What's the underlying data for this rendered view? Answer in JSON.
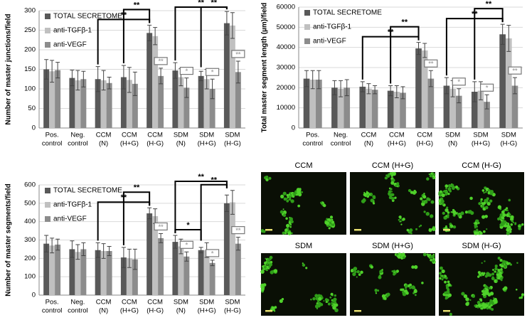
{
  "chart_data": [
    {
      "type": "bar",
      "y_label": "Number of master junctions/field",
      "categories": [
        [
          "Pos.",
          "control"
        ],
        [
          "Neg.",
          "control"
        ],
        [
          "CCM",
          "(N)"
        ],
        [
          "CCM",
          "(H+G)"
        ],
        [
          "CCM",
          "(H-G)"
        ],
        [
          "SDM",
          "(N)"
        ],
        [
          "SDM",
          "(H+G)"
        ],
        [
          "SDM",
          "(H-G)"
        ]
      ],
      "series": [
        {
          "name": "TOTAL SECRETOME",
          "color": "#595959",
          "values": [
            150,
            128,
            125,
            130,
            243,
            147,
            133,
            268
          ],
          "errors": [
            25,
            20,
            32,
            30,
            20,
            20,
            12,
            30
          ]
        },
        {
          "name": "anti-TGFβ-1",
          "color": "#c0c0c0",
          "values": [
            145,
            122,
            122,
            123,
            235,
            130,
            125,
            262
          ],
          "errors": [
            28,
            25,
            25,
            32,
            22,
            22,
            25,
            33
          ]
        },
        {
          "name": "anti-VEGF",
          "color": "#8c8c8c",
          "values": [
            148,
            125,
            115,
            113,
            133,
            103,
            100,
            143
          ],
          "errors": [
            20,
            20,
            15,
            30,
            20,
            25,
            25,
            28
          ]
        }
      ],
      "ylim": [
        0,
        300
      ],
      "yticks": [
        0,
        50,
        100,
        150,
        200,
        250,
        300
      ],
      "grid": true,
      "brackets": [
        {
          "label": "**",
          "from": 2,
          "to": 4
        },
        {
          "label": "**",
          "from": 3,
          "to": 4
        },
        {
          "label": "**",
          "from": 5,
          "to": 7
        },
        {
          "label": "**",
          "from": 6,
          "to": 7
        }
      ],
      "box_labels": [
        {
          "category": 4,
          "text": "**"
        },
        {
          "category": 5,
          "text": "*"
        },
        {
          "category": 6,
          "text": "*"
        },
        {
          "category": 7,
          "text": "**"
        }
      ]
    },
    {
      "type": "bar",
      "y_label": "Total master segment length (µm)/field",
      "categories": [
        [
          "Pos.",
          "control"
        ],
        [
          "Neg.",
          "control"
        ],
        [
          "CCM",
          "(N)"
        ],
        [
          "CCM",
          "(H+G)"
        ],
        [
          "CCM",
          "(H-G)"
        ],
        [
          "SDM",
          "(N)"
        ],
        [
          "SDM",
          "(H+G)"
        ],
        [
          "SDM",
          "(H-G)"
        ]
      ],
      "series": [
        {
          "name": "TOTAL SECRETOME",
          "color": "#595959",
          "values": [
            24500,
            20000,
            20500,
            18500,
            39500,
            21000,
            18000,
            46500
          ],
          "errors": [
            4000,
            3500,
            2500,
            2500,
            3000,
            4000,
            5000,
            5000
          ]
        },
        {
          "name": "anti-TGFβ-1",
          "color": "#c0c0c0",
          "values": [
            24000,
            19500,
            19500,
            18000,
            38500,
            19500,
            18500,
            44500
          ],
          "errors": [
            4500,
            4000,
            2500,
            3000,
            3500,
            4000,
            4500,
            6500
          ]
        },
        {
          "name": "anti-VEGF",
          "color": "#8c8c8c",
          "values": [
            24000,
            20000,
            19000,
            17500,
            24500,
            16000,
            13000,
            21000
          ],
          "errors": [
            4500,
            4000,
            2000,
            3000,
            4000,
            3500,
            3500,
            4000
          ]
        }
      ],
      "ylim": [
        0,
        60000
      ],
      "yticks": [
        0,
        10000,
        20000,
        30000,
        40000,
        50000,
        60000
      ],
      "grid": true,
      "brackets": [
        {
          "label": "**",
          "from": 2,
          "to": 4
        },
        {
          "label": "**",
          "from": 3,
          "to": 4
        },
        {
          "label": "**",
          "from": 5,
          "to": 7
        },
        {
          "label": "**",
          "from": 6,
          "to": 7
        }
      ],
      "box_labels": [
        {
          "category": 4,
          "text": "**"
        },
        {
          "category": 5,
          "text": "*"
        },
        {
          "category": 6,
          "text": "*"
        },
        {
          "category": 7,
          "text": "**"
        }
      ]
    },
    {
      "type": "bar",
      "y_label": "Number of master segments/field",
      "categories": [
        [
          "Pos.",
          "control"
        ],
        [
          "Neg.",
          "control"
        ],
        [
          "CCM",
          "(N)"
        ],
        [
          "CCM",
          "(H+G)"
        ],
        [
          "CCM",
          "(H-G)"
        ],
        [
          "SDM",
          "(N)"
        ],
        [
          "SDM",
          "(H+G)"
        ],
        [
          "SDM",
          "(H-G)"
        ]
      ],
      "series": [
        {
          "name": "TOTAL SECRETOME",
          "color": "#595959",
          "values": [
            280,
            250,
            245,
            205,
            445,
            290,
            245,
            500
          ],
          "errors": [
            45,
            45,
            40,
            55,
            30,
            35,
            15,
            45
          ]
        },
        {
          "name": "anti-TGFβ-1",
          "color": "#c0c0c0",
          "values": [
            270,
            235,
            240,
            200,
            430,
            265,
            245,
            505
          ],
          "errors": [
            40,
            40,
            40,
            50,
            40,
            40,
            40,
            65
          ]
        },
        {
          "name": "anti-VEGF",
          "color": "#8c8c8c",
          "values": [
            275,
            250,
            240,
            195,
            310,
            210,
            175,
            280
          ],
          "errors": [
            30,
            35,
            25,
            55,
            25,
            25,
            15,
            35
          ]
        }
      ],
      "ylim": [
        0,
        600
      ],
      "yticks": [
        0,
        100,
        200,
        300,
        400,
        500,
        600
      ],
      "grid": true,
      "brackets": [
        {
          "label": "**",
          "from": 2,
          "to": 4
        },
        {
          "label": "**",
          "from": 3,
          "to": 4
        },
        {
          "label": "*",
          "from": 5,
          "to": 6
        },
        {
          "label": "**",
          "from": 6,
          "to": 7
        },
        {
          "label": "**",
          "from": 5,
          "to": 7
        }
      ],
      "box_labels": [
        {
          "category": 4,
          "text": "**"
        },
        {
          "category": 5,
          "text": "*"
        },
        {
          "category": 6,
          "text": "*"
        },
        {
          "category": 7,
          "text": "**"
        }
      ]
    }
  ],
  "micrographs": {
    "labels": [
      "CCM",
      "CCM (H+G)",
      "CCM (H-G)",
      "SDM",
      "SDM (H+G)",
      "SDM (H-G)"
    ]
  }
}
